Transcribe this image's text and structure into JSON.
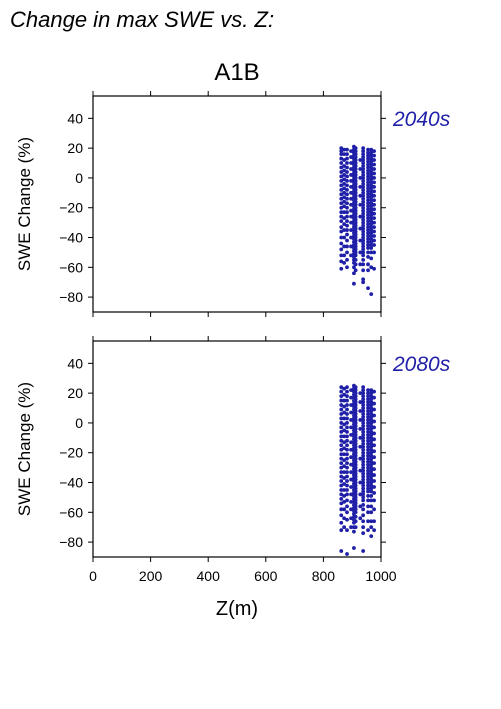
{
  "page": {
    "title": "Change in max SWE vs. Z:",
    "scenario": "A1B"
  },
  "colors": {
    "points": "#1f1fa8",
    "period_label": "#1f1fa8",
    "axes": "#000000"
  },
  "chart_data": [
    {
      "type": "scatter",
      "period": "2040s",
      "xlabel": "",
      "ylabel": "SWE Change (%)",
      "xlim": [
        0,
        1000
      ],
      "ylim": [
        -90,
        55
      ],
      "xticks": [
        0,
        200,
        400,
        600,
        800,
        1000
      ],
      "yticks": [
        -80,
        -60,
        -40,
        -20,
        0,
        20,
        40
      ],
      "grid": false,
      "point_columns": [
        {
          "x": 862,
          "y": [
            20,
            18,
            16,
            13,
            10,
            7,
            4,
            1,
            -2,
            -5,
            -8,
            -11,
            -14,
            -17,
            -20,
            -23,
            -26,
            -29,
            -33,
            -36,
            -40,
            -44,
            -48,
            -52,
            -56,
            -61
          ]
        },
        {
          "x": 872,
          "y": [
            19,
            16,
            12,
            8,
            5,
            2,
            -1,
            -4,
            -7,
            -10,
            -13,
            -16,
            -19,
            -23,
            -27,
            -31,
            -35,
            -40,
            -46,
            -52,
            -57
          ]
        },
        {
          "x": 882,
          "y": [
            19,
            16,
            13,
            10,
            7,
            4,
            1,
            -2,
            -5,
            -8,
            -11,
            -14,
            -17,
            -20,
            -23,
            -26,
            -29,
            -32,
            -35,
            -38,
            -42,
            -46,
            -50,
            -55,
            -60
          ]
        },
        {
          "x": 896,
          "y": [
            18,
            14,
            10,
            6,
            2,
            -2,
            -6,
            -10,
            -14,
            -18,
            -22,
            -26,
            -30,
            -35,
            -40,
            -46,
            -52
          ]
        },
        {
          "x": 906,
          "y": [
            21,
            19,
            17,
            15,
            13,
            11,
            9,
            7,
            5,
            3,
            1,
            -1,
            -3,
            -5,
            -7,
            -9,
            -11,
            -13,
            -15,
            -17,
            -19,
            -21,
            -23,
            -25,
            -27,
            -29,
            -31,
            -33,
            -35,
            -37,
            -39,
            -41,
            -43,
            -45,
            -47,
            -49,
            -51,
            -53,
            -55,
            -57,
            -60,
            -64,
            -71
          ]
        },
        {
          "x": 912,
          "y": [
            20,
            18,
            16,
            14,
            12,
            10,
            8,
            6,
            4,
            2,
            0,
            -2,
            -4,
            -6,
            -8,
            -10,
            -12,
            -14,
            -16,
            -18,
            -20,
            -22,
            -24,
            -26,
            -28,
            -30,
            -32,
            -34,
            -36,
            -38,
            -40,
            -42,
            -44,
            -46,
            -48,
            -50,
            -52,
            -55,
            -58,
            -62
          ]
        },
        {
          "x": 928,
          "y": [
            12,
            6,
            0,
            -6,
            -12,
            -18,
            -26,
            -34,
            -42,
            -50,
            -58
          ]
        },
        {
          "x": 938,
          "y": [
            20,
            18,
            16,
            14,
            12,
            10,
            8,
            6,
            4,
            2,
            0,
            -2,
            -4,
            -6,
            -8,
            -10,
            -12,
            -14,
            -16,
            -18,
            -20,
            -22,
            -24,
            -26,
            -28,
            -30,
            -32,
            -34,
            -36,
            -38,
            -40,
            -42,
            -44,
            -46,
            -48,
            -50,
            -52,
            -55,
            -58,
            -62,
            -68,
            -70
          ]
        },
        {
          "x": 955,
          "y": [
            19,
            17,
            15,
            13,
            11,
            9,
            7,
            5,
            3,
            1,
            -1,
            -3,
            -5,
            -7,
            -9,
            -11,
            -13,
            -15,
            -17,
            -19,
            -21,
            -23,
            -25,
            -27,
            -29,
            -31,
            -33,
            -35,
            -37,
            -39,
            -41,
            -43,
            -45,
            -47,
            -50,
            -53,
            -58,
            -62,
            -74
          ]
        },
        {
          "x": 966,
          "y": [
            19,
            17,
            15,
            13,
            11,
            9,
            7,
            5,
            3,
            1,
            -1,
            -3,
            -5,
            -7,
            -9,
            -11,
            -13,
            -15,
            -17,
            -19,
            -21,
            -23,
            -25,
            -27,
            -29,
            -31,
            -33,
            -35,
            -37,
            -39,
            -41,
            -43,
            -45,
            -47,
            -50,
            -54,
            -60,
            -78
          ]
        },
        {
          "x": 976,
          "y": [
            18,
            15,
            12,
            9,
            6,
            3,
            0,
            -3,
            -6,
            -9,
            -12,
            -15,
            -18,
            -21,
            -24,
            -27,
            -30,
            -33,
            -36,
            -39,
            -42,
            -45,
            -50,
            -61
          ]
        }
      ]
    },
    {
      "type": "scatter",
      "period": "2080s",
      "xlabel": "Z(m)",
      "ylabel": "SWE Change (%)",
      "xlim": [
        0,
        1000
      ],
      "ylim": [
        -90,
        55
      ],
      "xticks": [
        0,
        200,
        400,
        600,
        800,
        1000
      ],
      "yticks": [
        -80,
        -60,
        -40,
        -20,
        0,
        20,
        40
      ],
      "grid": false,
      "point_columns": [
        {
          "x": 862,
          "y": [
            24,
            21,
            18,
            15,
            12,
            9,
            6,
            3,
            0,
            -3,
            -6,
            -9,
            -12,
            -15,
            -18,
            -21,
            -24,
            -27,
            -30,
            -33,
            -36,
            -39,
            -42,
            -45,
            -48,
            -51,
            -54,
            -58,
            -62,
            -67,
            -72,
            -86
          ]
        },
        {
          "x": 872,
          "y": [
            23,
            19,
            15,
            11,
            7,
            3,
            -1,
            -5,
            -9,
            -13,
            -17,
            -21,
            -25,
            -29,
            -33,
            -37,
            -41,
            -45,
            -49,
            -53,
            -58,
            -64,
            -70
          ]
        },
        {
          "x": 882,
          "y": [
            24,
            21,
            18,
            15,
            12,
            9,
            6,
            3,
            0,
            -3,
            -6,
            -9,
            -12,
            -15,
            -18,
            -21,
            -24,
            -27,
            -30,
            -33,
            -36,
            -39,
            -42,
            -45,
            -48,
            -52,
            -56,
            -60,
            -65,
            -72,
            -88
          ]
        },
        {
          "x": 896,
          "y": [
            22,
            17,
            12,
            7,
            2,
            -3,
            -8,
            -13,
            -18,
            -23,
            -28,
            -33,
            -38,
            -43,
            -48,
            -53,
            -58,
            -64,
            -70
          ]
        },
        {
          "x": 906,
          "y": [
            25,
            23,
            21,
            19,
            17,
            15,
            13,
            11,
            9,
            7,
            5,
            3,
            1,
            -1,
            -3,
            -5,
            -7,
            -9,
            -11,
            -13,
            -15,
            -17,
            -19,
            -21,
            -23,
            -25,
            -27,
            -29,
            -31,
            -33,
            -35,
            -37,
            -39,
            -41,
            -43,
            -45,
            -47,
            -49,
            -51,
            -53,
            -55,
            -57,
            -59,
            -61,
            -63,
            -65,
            -67,
            -70,
            -73,
            -84
          ]
        },
        {
          "x": 912,
          "y": [
            24,
            22,
            20,
            18,
            16,
            14,
            12,
            10,
            8,
            6,
            4,
            2,
            0,
            -2,
            -4,
            -6,
            -8,
            -10,
            -12,
            -14,
            -16,
            -18,
            -20,
            -22,
            -24,
            -26,
            -28,
            -30,
            -32,
            -34,
            -36,
            -38,
            -40,
            -42,
            -44,
            -46,
            -48,
            -50,
            -52,
            -54,
            -56,
            -58,
            -60,
            -63,
            -66,
            -70
          ]
        },
        {
          "x": 928,
          "y": [
            20,
            14,
            8,
            2,
            -4,
            -10,
            -16,
            -24,
            -32,
            -40,
            -48,
            -56,
            -64
          ]
        },
        {
          "x": 938,
          "y": [
            24,
            22,
            20,
            18,
            16,
            14,
            12,
            10,
            8,
            6,
            4,
            2,
            0,
            -2,
            -4,
            -6,
            -8,
            -10,
            -12,
            -14,
            -16,
            -18,
            -20,
            -22,
            -24,
            -26,
            -28,
            -30,
            -32,
            -34,
            -36,
            -38,
            -40,
            -42,
            -44,
            -46,
            -48,
            -50,
            -52,
            -55,
            -58,
            -62,
            -66,
            -70,
            -74,
            -86
          ]
        },
        {
          "x": 955,
          "y": [
            22,
            20,
            18,
            16,
            14,
            12,
            10,
            8,
            6,
            4,
            2,
            0,
            -2,
            -4,
            -6,
            -8,
            -10,
            -12,
            -14,
            -16,
            -18,
            -20,
            -22,
            -24,
            -26,
            -28,
            -30,
            -32,
            -34,
            -36,
            -38,
            -40,
            -42,
            -44,
            -46,
            -49,
            -52,
            -56,
            -60,
            -66,
            -72
          ]
        },
        {
          "x": 966,
          "y": [
            22,
            20,
            18,
            16,
            14,
            12,
            10,
            8,
            6,
            4,
            2,
            0,
            -2,
            -4,
            -6,
            -8,
            -10,
            -12,
            -14,
            -16,
            -18,
            -20,
            -22,
            -24,
            -26,
            -28,
            -30,
            -32,
            -34,
            -36,
            -38,
            -40,
            -42,
            -44,
            -46,
            -49,
            -52,
            -56,
            -60,
            -66,
            -70,
            -76
          ]
        },
        {
          "x": 976,
          "y": [
            21,
            17,
            13,
            9,
            5,
            1,
            -3,
            -7,
            -11,
            -15,
            -19,
            -23,
            -27,
            -31,
            -35,
            -39,
            -43,
            -47,
            -52,
            -58,
            -66,
            -72
          ]
        }
      ]
    }
  ]
}
